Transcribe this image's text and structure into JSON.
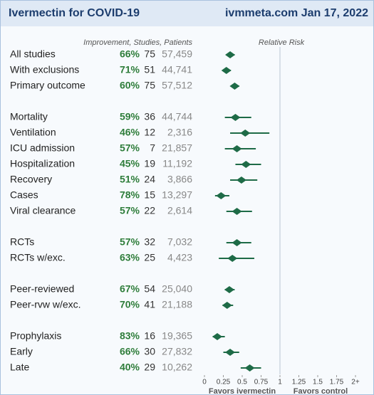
{
  "chart_data": {
    "type": "forest",
    "title": "Ivermectin for COVID-19",
    "source": "ivmmeta.com Jan 17, 2022",
    "columns_label": "Improvement, Studies, Patients",
    "xlabel": "Relative Risk",
    "favors_left": "Favors ivermectin",
    "favors_right": "Favors control",
    "color": "#1e6b47",
    "xlim": [
      0,
      2
    ],
    "xticks": [
      0,
      0.25,
      0.5,
      0.75,
      1,
      1.25,
      1.5,
      1.75,
      {
        "value": 2,
        "label": "2+"
      }
    ],
    "reference": 1,
    "groups": [
      {
        "categories": [
          "All studies",
          "With exclusions",
          "Primary outcome"
        ],
        "improvement": [
          66,
          71,
          60
        ],
        "improvement_labels": [
          "66%",
          "71%",
          "60%"
        ],
        "studies": [
          75,
          51,
          75
        ],
        "patients": [
          57459,
          44741,
          57512
        ],
        "patients_labels": [
          "57,459",
          "44,741",
          "57,512"
        ],
        "values": [
          0.34,
          0.29,
          0.4
        ],
        "ci_low": [
          0.29,
          0.24,
          0.35
        ],
        "ci_high": [
          0.4,
          0.35,
          0.46
        ]
      },
      {
        "categories": [
          "Mortality",
          "Ventilation",
          "ICU admission",
          "Hospitalization",
          "Recovery",
          "Cases",
          "Viral clearance"
        ],
        "improvement": [
          59,
          46,
          57,
          45,
          51,
          78,
          57
        ],
        "improvement_labels": [
          "59%",
          "46%",
          "57%",
          "45%",
          "51%",
          "78%",
          "57%"
        ],
        "studies": [
          36,
          12,
          7,
          19,
          24,
          15,
          22
        ],
        "patients": [
          44744,
          2316,
          21857,
          11192,
          3866,
          13297,
          2614
        ],
        "patients_labels": [
          "44,744",
          "2,316",
          "21,857",
          "11,192",
          "3,866",
          "13,297",
          "2,614"
        ],
        "values": [
          0.41,
          0.54,
          0.43,
          0.55,
          0.49,
          0.22,
          0.43
        ],
        "ci_low": [
          0.27,
          0.34,
          0.27,
          0.41,
          0.34,
          0.14,
          0.29
        ],
        "ci_high": [
          0.62,
          0.86,
          0.68,
          0.75,
          0.7,
          0.33,
          0.63
        ]
      },
      {
        "categories": [
          "RCTs",
          "RCTs w/exc."
        ],
        "improvement": [
          57,
          63
        ],
        "improvement_labels": [
          "57%",
          "63%"
        ],
        "studies": [
          32,
          25
        ],
        "patients": [
          7032,
          4423
        ],
        "patients_labels": [
          "7,032",
          "4,423"
        ],
        "values": [
          0.43,
          0.37
        ],
        "ci_low": [
          0.29,
          0.19
        ],
        "ci_high": [
          0.62,
          0.66
        ]
      },
      {
        "categories": [
          "Peer-reviewed",
          "Peer-rvw w/exc."
        ],
        "improvement": [
          67,
          70
        ],
        "improvement_labels": [
          "67%",
          "70%"
        ],
        "studies": [
          54,
          41
        ],
        "patients": [
          25040,
          21188
        ],
        "patients_labels": [
          "25,040",
          "21,188"
        ],
        "values": [
          0.33,
          0.3
        ],
        "ci_low": [
          0.27,
          0.24
        ],
        "ci_high": [
          0.4,
          0.38
        ]
      },
      {
        "categories": [
          "Prophylaxis",
          "Early",
          "Late"
        ],
        "improvement": [
          83,
          66,
          40
        ],
        "improvement_labels": [
          "83%",
          "66%",
          "40%"
        ],
        "studies": [
          16,
          30,
          29
        ],
        "patients": [
          19365,
          27832,
          10262
        ],
        "patients_labels": [
          "19,365",
          "27,832",
          "10,262"
        ],
        "values": [
          0.17,
          0.34,
          0.6
        ],
        "ci_low": [
          0.11,
          0.25,
          0.48
        ],
        "ci_high": [
          0.27,
          0.46,
          0.75
        ]
      }
    ]
  }
}
